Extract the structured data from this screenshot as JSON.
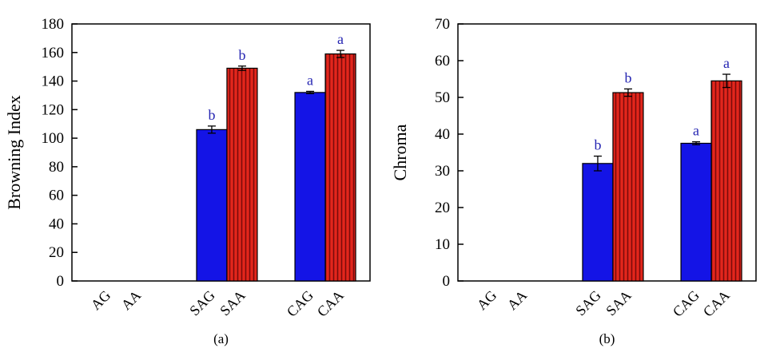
{
  "colors": {
    "blue_bar": "#1414e6",
    "red_bar": "#e3261c",
    "red_stripe": "#7a0b0b",
    "sig_label": "#2525b2",
    "axis": "#000000"
  },
  "chart_data": [
    {
      "type": "bar",
      "panel_label": "(a)",
      "title": "",
      "xlabel": "",
      "ylabel": "Browning Index",
      "ylim": [
        0,
        180
      ],
      "ytick_step": 20,
      "grid": false,
      "legend": "none",
      "categories": [
        "AG",
        "AA",
        "SAG",
        "SAA",
        "CAG",
        "CAA"
      ],
      "values": [
        0,
        0,
        106,
        149,
        132,
        159
      ],
      "errors": [
        0,
        0,
        2.5,
        1.5,
        0.8,
        2.5
      ],
      "sig_labels": [
        "",
        "",
        "b",
        "b",
        "a",
        "a"
      ],
      "styles": [
        "blue",
        "striped",
        "blue",
        "striped",
        "blue",
        "striped"
      ],
      "pair_centers": [
        0.17,
        0.52,
        0.85
      ]
    },
    {
      "type": "bar",
      "panel_label": "(b)",
      "title": "",
      "xlabel": "",
      "ylabel": "Chroma",
      "ylim": [
        0,
        70
      ],
      "ytick_step": 10,
      "grid": false,
      "legend": "none",
      "categories": [
        "AG",
        "AA",
        "SAG",
        "SAA",
        "CAG",
        "CAA"
      ],
      "values": [
        0,
        0,
        32,
        51.3,
        37.5,
        54.5
      ],
      "errors": [
        0,
        0,
        2,
        1,
        0.4,
        1.8
      ],
      "sig_labels": [
        "",
        "",
        "b",
        "b",
        "a",
        "a"
      ],
      "styles": [
        "blue",
        "striped",
        "blue",
        "striped",
        "blue",
        "striped"
      ],
      "pair_centers": [
        0.17,
        0.52,
        0.85
      ]
    }
  ]
}
